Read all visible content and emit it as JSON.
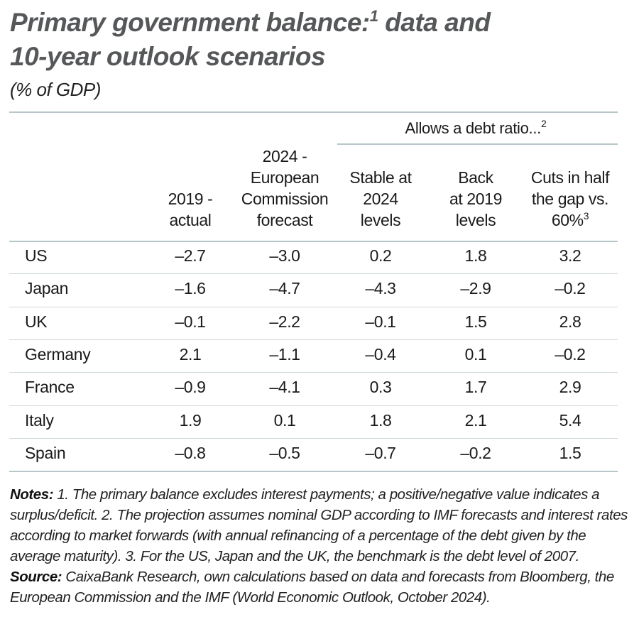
{
  "title": {
    "line1": "Primary government balance:",
    "line1_sup": "1",
    "line1_end": " data and",
    "line2": "10-year outlook scenarios"
  },
  "subtitle": "(% of GDP)",
  "table": {
    "group_header": "Allows a debt ratio...",
    "group_header_sup": "2",
    "columns": [
      {
        "lines": [
          "2019 -",
          "actual"
        ]
      },
      {
        "lines": [
          "2024 -",
          "European",
          "Commission",
          "forecast"
        ]
      },
      {
        "lines": [
          "Stable at",
          "2024",
          "levels"
        ]
      },
      {
        "lines": [
          "Back",
          "at 2019",
          "levels"
        ]
      },
      {
        "lines": [
          "Cuts in half",
          "the gap vs.",
          "60%"
        ],
        "sup": "3"
      }
    ],
    "rows": [
      {
        "country": "US",
        "values": [
          "–2.7",
          "–3.0",
          "0.2",
          "1.8",
          "3.2"
        ]
      },
      {
        "country": "Japan",
        "values": [
          "–1.6",
          "–4.7",
          "–4.3",
          "–2.9",
          "–0.2"
        ]
      },
      {
        "country": "UK",
        "values": [
          "–0.1",
          "–2.2",
          "–0.1",
          "1.5",
          "2.8"
        ]
      },
      {
        "country": "Germany",
        "values": [
          "2.1",
          "–1.1",
          "–0.4",
          "0.1",
          "–0.2"
        ]
      },
      {
        "country": "France",
        "values": [
          "–0.9",
          "–4.1",
          "0.3",
          "1.7",
          "2.9"
        ]
      },
      {
        "country": "Italy",
        "values": [
          "1.9",
          "0.1",
          "1.8",
          "2.1",
          "5.4"
        ]
      },
      {
        "country": "Spain",
        "values": [
          "–0.8",
          "–0.5",
          "–0.7",
          "–0.2",
          "1.5"
        ]
      }
    ]
  },
  "notes": {
    "notes_label": "Notes:",
    "notes_text": " 1. The primary balance excludes interest payments; a positive/negative value indicates a surplus/deficit. 2. The projection assumes nominal GDP according to IMF forecasts and interest rates according to market forwards (with annual refinancing of a percentage of the debt given by the average maturity). 3. For the US, Japan and the UK, the benchmark is the debt level of 2007.",
    "source_label": "Source:",
    "source_text": " CaixaBank Research, own calculations based on data and forecasts from Bloomberg, the European Commission and the IMF (World Economic Outlook, October 2024)."
  },
  "colors": {
    "title": "#555759",
    "rule": "#b9c6c9"
  }
}
